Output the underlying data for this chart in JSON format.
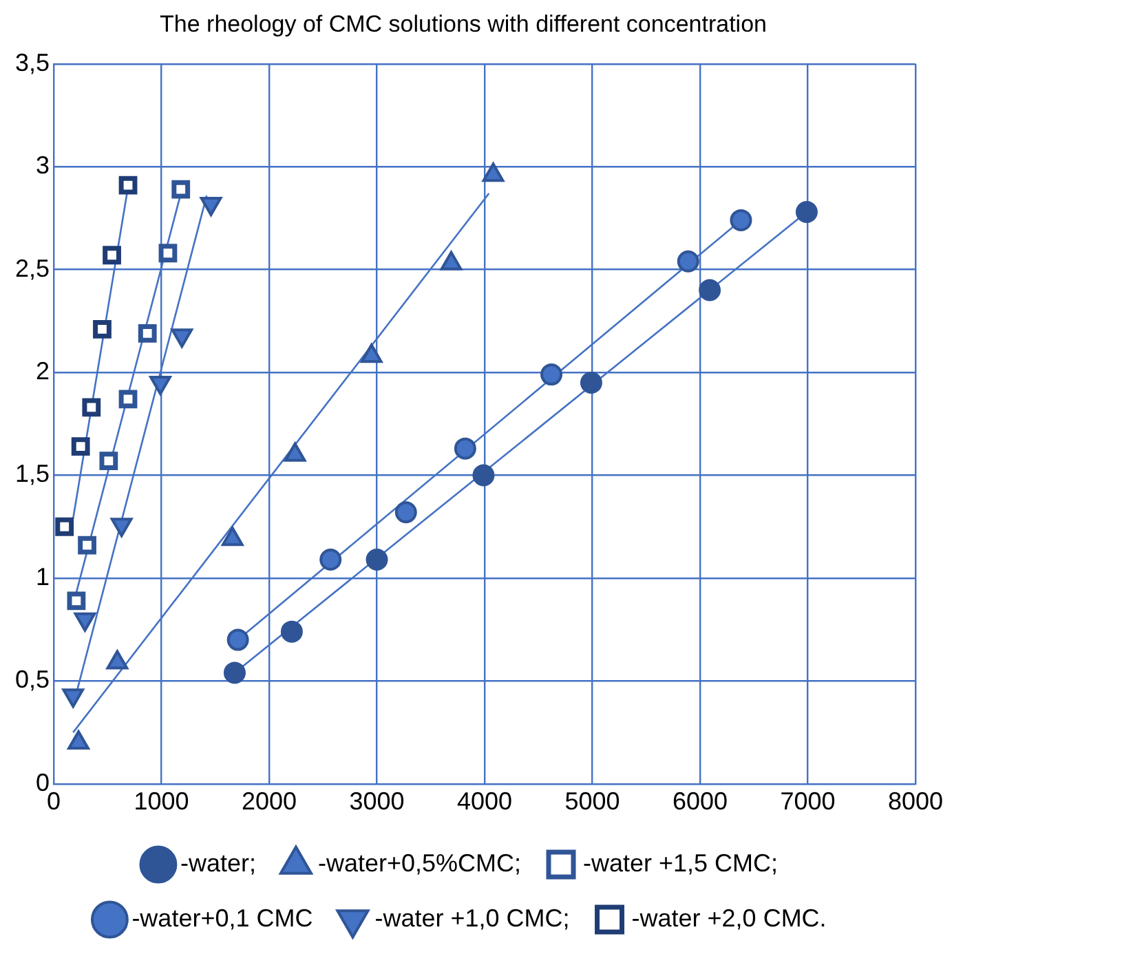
{
  "chart_data": {
    "type": "scatter",
    "title": "The rheology of CMC solutions with different concentration",
    "xlim": [
      0,
      8000
    ],
    "xticks": [
      0,
      1000,
      2000,
      3000,
      4000,
      5000,
      6000,
      7000,
      8000
    ],
    "ylim": [
      0,
      3.5
    ],
    "yticks": [
      0,
      {
        "value": 0.5,
        "label": "0,5"
      },
      1,
      {
        "value": 1.5,
        "label": "1,5"
      },
      2,
      {
        "value": 2.5,
        "label": "2,5"
      },
      3,
      {
        "value": 3.5,
        "label": "3,5"
      }
    ],
    "grid": true,
    "legend": "bottom",
    "series": [
      {
        "name": "-water;",
        "type": "scatter",
        "marker": "circle",
        "color": "#2f5597",
        "x": [
          1680,
          2210,
          3000,
          3990,
          4990,
          6090,
          6990
        ],
        "values": [
          0.54,
          0.74,
          1.09,
          1.5,
          1.95,
          2.4,
          2.78
        ]
      },
      {
        "name": "-water+0,1 CMC",
        "type": "scatter",
        "marker": "circle",
        "color": "#4472c4",
        "x": [
          1710,
          2570,
          3270,
          3820,
          4620,
          5890,
          6380
        ],
        "values": [
          0.7,
          1.09,
          1.32,
          1.63,
          1.99,
          2.54,
          2.74
        ]
      },
      {
        "name": "-water+0,5%CMC;",
        "type": "scatter",
        "marker": "triangle",
        "color": "#2f5597",
        "x": [
          230,
          590,
          1660,
          2240,
          2950,
          3690,
          4080
        ],
        "values": [
          0.2,
          0.59,
          1.19,
          1.6,
          2.08,
          2.53,
          2.96
        ]
      },
      {
        "name": "-water +1,0 CMC;",
        "type": "scatter",
        "marker": "triangle-down",
        "color": "#2f5597",
        "x": [
          180,
          290,
          630,
          990,
          1190,
          1460
        ],
        "values": [
          0.43,
          0.8,
          1.26,
          1.95,
          2.18,
          2.82
        ]
      },
      {
        "name": "-water +1,5 CMC;",
        "type": "scatter",
        "marker": "square",
        "color": "#2f5597",
        "x": [
          210,
          310,
          510,
          690,
          870,
          1060,
          1180
        ],
        "values": [
          0.89,
          1.16,
          1.57,
          1.87,
          2.19,
          2.58,
          2.89
        ]
      },
      {
        "name": "-water +2,0 CMC.",
        "type": "scatter",
        "marker": "square",
        "color": "#1f3c74",
        "x": [
          100,
          250,
          350,
          450,
          540,
          690
        ],
        "values": [
          1.25,
          1.64,
          1.83,
          2.21,
          2.57,
          2.91
        ]
      },
      {
        "type": "line",
        "marker": "none",
        "color": "#4472c4",
        "x": [
          1680,
          6990
        ],
        "values": [
          0.54,
          2.78
        ]
      },
      {
        "type": "line",
        "marker": "none",
        "color": "#4472c4",
        "x": [
          1710,
          6380
        ],
        "values": [
          0.7,
          2.74
        ]
      },
      {
        "type": "line",
        "marker": "none",
        "color": "#4472c4",
        "x": [
          180,
          4040
        ],
        "values": [
          0.25,
          2.87
        ]
      },
      {
        "type": "line",
        "marker": "none",
        "color": "#4472c4",
        "x": [
          180,
          1420
        ],
        "values": [
          0.38,
          2.86
        ]
      },
      {
        "type": "line",
        "marker": "none",
        "color": "#4472c4",
        "x": [
          210,
          1170
        ],
        "values": [
          0.93,
          2.85
        ]
      },
      {
        "type": "line",
        "marker": "none",
        "color": "#4472c4",
        "x": [
          180,
          680
        ],
        "values": [
          1.29,
          2.87
        ]
      }
    ]
  }
}
